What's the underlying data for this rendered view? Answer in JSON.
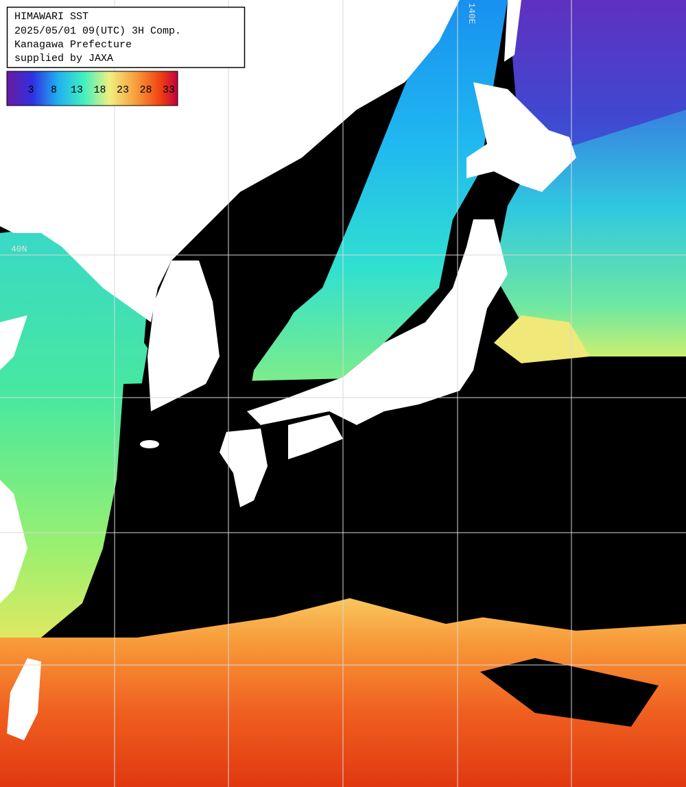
{
  "header": {
    "lines": [
      "HIMAWARI SST",
      "2025/05/01 09(UTC) 3H Comp.",
      "Kanagawa Prefecture",
      "supplied by JAXA"
    ]
  },
  "colorbar": {
    "labels": [
      "3",
      "8",
      "13",
      "18",
      "23",
      "28",
      "33"
    ]
  },
  "grid_labels": {
    "latitude": "40N",
    "longitude": "140E"
  }
}
